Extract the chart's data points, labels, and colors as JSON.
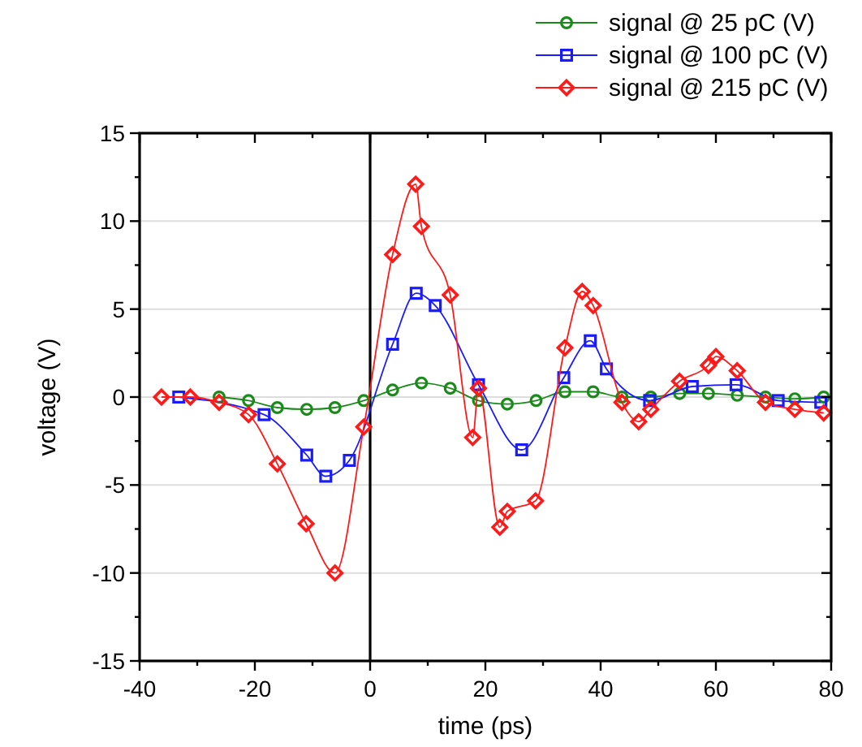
{
  "chart_data": {
    "type": "line",
    "xlabel": "time (ps)",
    "ylabel": "voltage (V)",
    "xlim": [
      -40,
      80
    ],
    "xticks": [
      -40,
      {
        "value": -30,
        "label": null
      },
      -20,
      {
        "value": -10,
        "label": null
      },
      0,
      {
        "value": 10,
        "label": null
      },
      20,
      {
        "value": 30,
        "label": null
      },
      40,
      {
        "value": 50,
        "label": null
      },
      60,
      {
        "value": 70,
        "label": null
      },
      80
    ],
    "ylim": [
      -15,
      15
    ],
    "yticks": [
      -15,
      {
        "value": -12.5,
        "label": null
      },
      -10,
      {
        "value": -7.5,
        "label": null
      },
      -5,
      {
        "value": -2.5,
        "label": null
      },
      0,
      {
        "value": 2.5,
        "label": null
      },
      5,
      {
        "value": 7.5,
        "label": null
      },
      10,
      {
        "value": 12.5,
        "label": null
      },
      15
    ],
    "grid": "y",
    "legend": "top right",
    "line_style": "solid",
    "ref_lines": [
      {
        "axis": "x",
        "value": 0,
        "color": "#000000"
      }
    ],
    "series": [
      {
        "name": "signal @ 25 pC (V)",
        "color": "#1a8a1a",
        "marker": "circle",
        "x": [
          -26.2,
          -21.1,
          -16.1,
          -11,
          -6.1,
          -1.1,
          3.9,
          8.9,
          13.9,
          18.8,
          23.8,
          28.8,
          33.8,
          38.7,
          43.7,
          48.7,
          53.7,
          58.7,
          63.7,
          68.6,
          73.7,
          78.7
        ],
        "values": [
          0,
          -0.2,
          -0.6,
          -0.7,
          -0.6,
          -0.2,
          0.4,
          0.8,
          0.5,
          -0.2,
          -0.4,
          -0.2,
          0.3,
          0.3,
          0,
          0,
          0.2,
          0.2,
          0.1,
          0,
          -0.1,
          0
        ]
      },
      {
        "name": "signal @ 100 pC (V)",
        "color": "#1a1aff",
        "marker": "square",
        "x": [
          -33.2,
          -18.4,
          -11,
          -7.7,
          -3.6,
          3.9,
          8,
          11.3,
          18.8,
          26.3,
          33.6,
          38.2,
          41,
          48.5,
          55.9,
          63.5,
          70.8,
          78.2
        ],
        "values": [
          0,
          -1,
          -3.3,
          -4.5,
          -3.6,
          3,
          5.9,
          5.2,
          0.7,
          -3,
          1.1,
          3.2,
          1.6,
          -0.2,
          0.6,
          0.7,
          -0.2,
          -0.3
        ]
      },
      {
        "name": "signal @ 215 pC (V)",
        "color": "#ff1a1a",
        "marker": "diamond",
        "x": [
          -36.2,
          -31.2,
          -26.2,
          -21.1,
          -16.1,
          -11.1,
          -6.1,
          -1.1,
          3.9,
          7.9,
          8.9,
          13.9,
          17.8,
          18.8,
          22.5,
          23.8,
          28.7,
          33.8,
          36.8,
          38.7,
          43.7,
          46.6,
          48.7,
          53.7,
          58.7,
          60,
          63.7,
          68.6,
          73.7,
          78.7
        ],
        "values": [
          0,
          0,
          -0.3,
          -1,
          -3.8,
          -7.2,
          -10,
          -1.7,
          8.1,
          12.1,
          9.7,
          5.8,
          -2.3,
          0.5,
          -7.4,
          -6.5,
          -5.9,
          2.8,
          6,
          5.2,
          -0.3,
          -1.4,
          -0.7,
          0.9,
          1.8,
          2.3,
          1.5,
          -0.3,
          -0.7,
          -0.9
        ]
      }
    ]
  }
}
